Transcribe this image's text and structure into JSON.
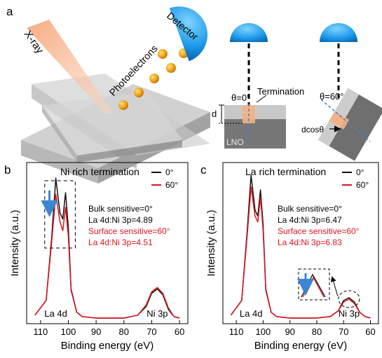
{
  "panel_a": {
    "label": "a",
    "xray": "X-ray",
    "photoelectrons": "Photoelectrons",
    "detector": "Detector",
    "theta0": "θ=0°",
    "termination": "Termination",
    "d": "d",
    "lno": "LNO",
    "theta60": "θ=60°",
    "dcos": "dcosθ"
  },
  "chart_data": [
    {
      "type": "line",
      "panel": "b",
      "title": "Ni rich termination",
      "xlabel": "Binding energy (eV)",
      "ylabel": "Intensity (a.u.)",
      "xlim": [
        115,
        57
      ],
      "x_ticks": [
        "110",
        "100",
        "90",
        "80",
        "70",
        "60"
      ],
      "legend": [
        {
          "name": "0°",
          "color": "#111111"
        },
        {
          "name": "60°",
          "color": "#e0141e"
        }
      ],
      "annotations": {
        "line1": "Bulk sensitive=0°",
        "line2": "La 4d:Ni 3p=4.89",
        "line3": "Surface sensitive=60°",
        "line4": "La 4d:Ni 3p=4.51"
      },
      "peak_labels": [
        "La 4d",
        "Ni 3p"
      ],
      "series": [
        {
          "name": "0°",
          "x": [
            112,
            108,
            106,
            104.5,
            103,
            102,
            101,
            100,
            99,
            97,
            95,
            90,
            80,
            75,
            72,
            70,
            68,
            66,
            64,
            62,
            60
          ],
          "y": [
            0.02,
            0.12,
            0.55,
            0.96,
            0.72,
            0.68,
            0.86,
            0.62,
            0.2,
            0.04,
            0.01,
            0.0,
            0.0,
            0.02,
            0.08,
            0.17,
            0.2,
            0.16,
            0.06,
            0.01,
            0.0
          ]
        },
        {
          "name": "60°",
          "x": [
            112,
            108,
            106,
            104.5,
            103,
            102,
            101,
            100,
            99,
            97,
            95,
            90,
            80,
            75,
            72,
            70,
            68,
            66,
            64,
            62,
            60
          ],
          "y": [
            0.02,
            0.12,
            0.52,
            0.85,
            0.66,
            0.6,
            0.76,
            0.56,
            0.19,
            0.04,
            0.01,
            0.0,
            0.0,
            0.02,
            0.09,
            0.18,
            0.21,
            0.17,
            0.07,
            0.01,
            0.0
          ]
        }
      ]
    },
    {
      "type": "line",
      "panel": "c",
      "title": "La rich termination",
      "xlabel": "Binding energy (eV)",
      "ylabel": "Intensity (a.u.)",
      "xlim": [
        115,
        57
      ],
      "x_ticks": [
        "110",
        "100",
        "90",
        "80",
        "70",
        "60"
      ],
      "legend": [
        {
          "name": "0°",
          "color": "#111111"
        },
        {
          "name": "60°",
          "color": "#e0141e"
        }
      ],
      "annotations": {
        "line1": "Bulk sensitive=0°",
        "line2": "La 4d:Ni 3p=6.47",
        "line3": "Surface sensitive=60°",
        "line4": "La 4d:Ni 3p=6.83"
      },
      "peak_labels": [
        "La 4d",
        "Ni 3p"
      ],
      "series": [
        {
          "name": "0°",
          "x": [
            112,
            108,
            106,
            104.5,
            103,
            102,
            101,
            100,
            99,
            97,
            95,
            90,
            80,
            75,
            72,
            70,
            68,
            66,
            64,
            62,
            60
          ],
          "y": [
            0.02,
            0.12,
            0.58,
            0.98,
            0.74,
            0.7,
            0.88,
            0.64,
            0.2,
            0.04,
            0.01,
            0.0,
            0.0,
            0.01,
            0.05,
            0.12,
            0.14,
            0.11,
            0.04,
            0.01,
            0.0
          ]
        },
        {
          "name": "60°",
          "x": [
            112,
            108,
            106,
            104.5,
            103,
            102,
            101,
            100,
            99,
            97,
            95,
            90,
            80,
            75,
            72,
            70,
            68,
            66,
            64,
            62,
            60
          ],
          "y": [
            0.02,
            0.12,
            0.55,
            0.9,
            0.7,
            0.66,
            0.83,
            0.6,
            0.19,
            0.04,
            0.01,
            0.0,
            0.0,
            0.01,
            0.05,
            0.11,
            0.13,
            0.1,
            0.04,
            0.01,
            0.0
          ]
        }
      ]
    }
  ]
}
